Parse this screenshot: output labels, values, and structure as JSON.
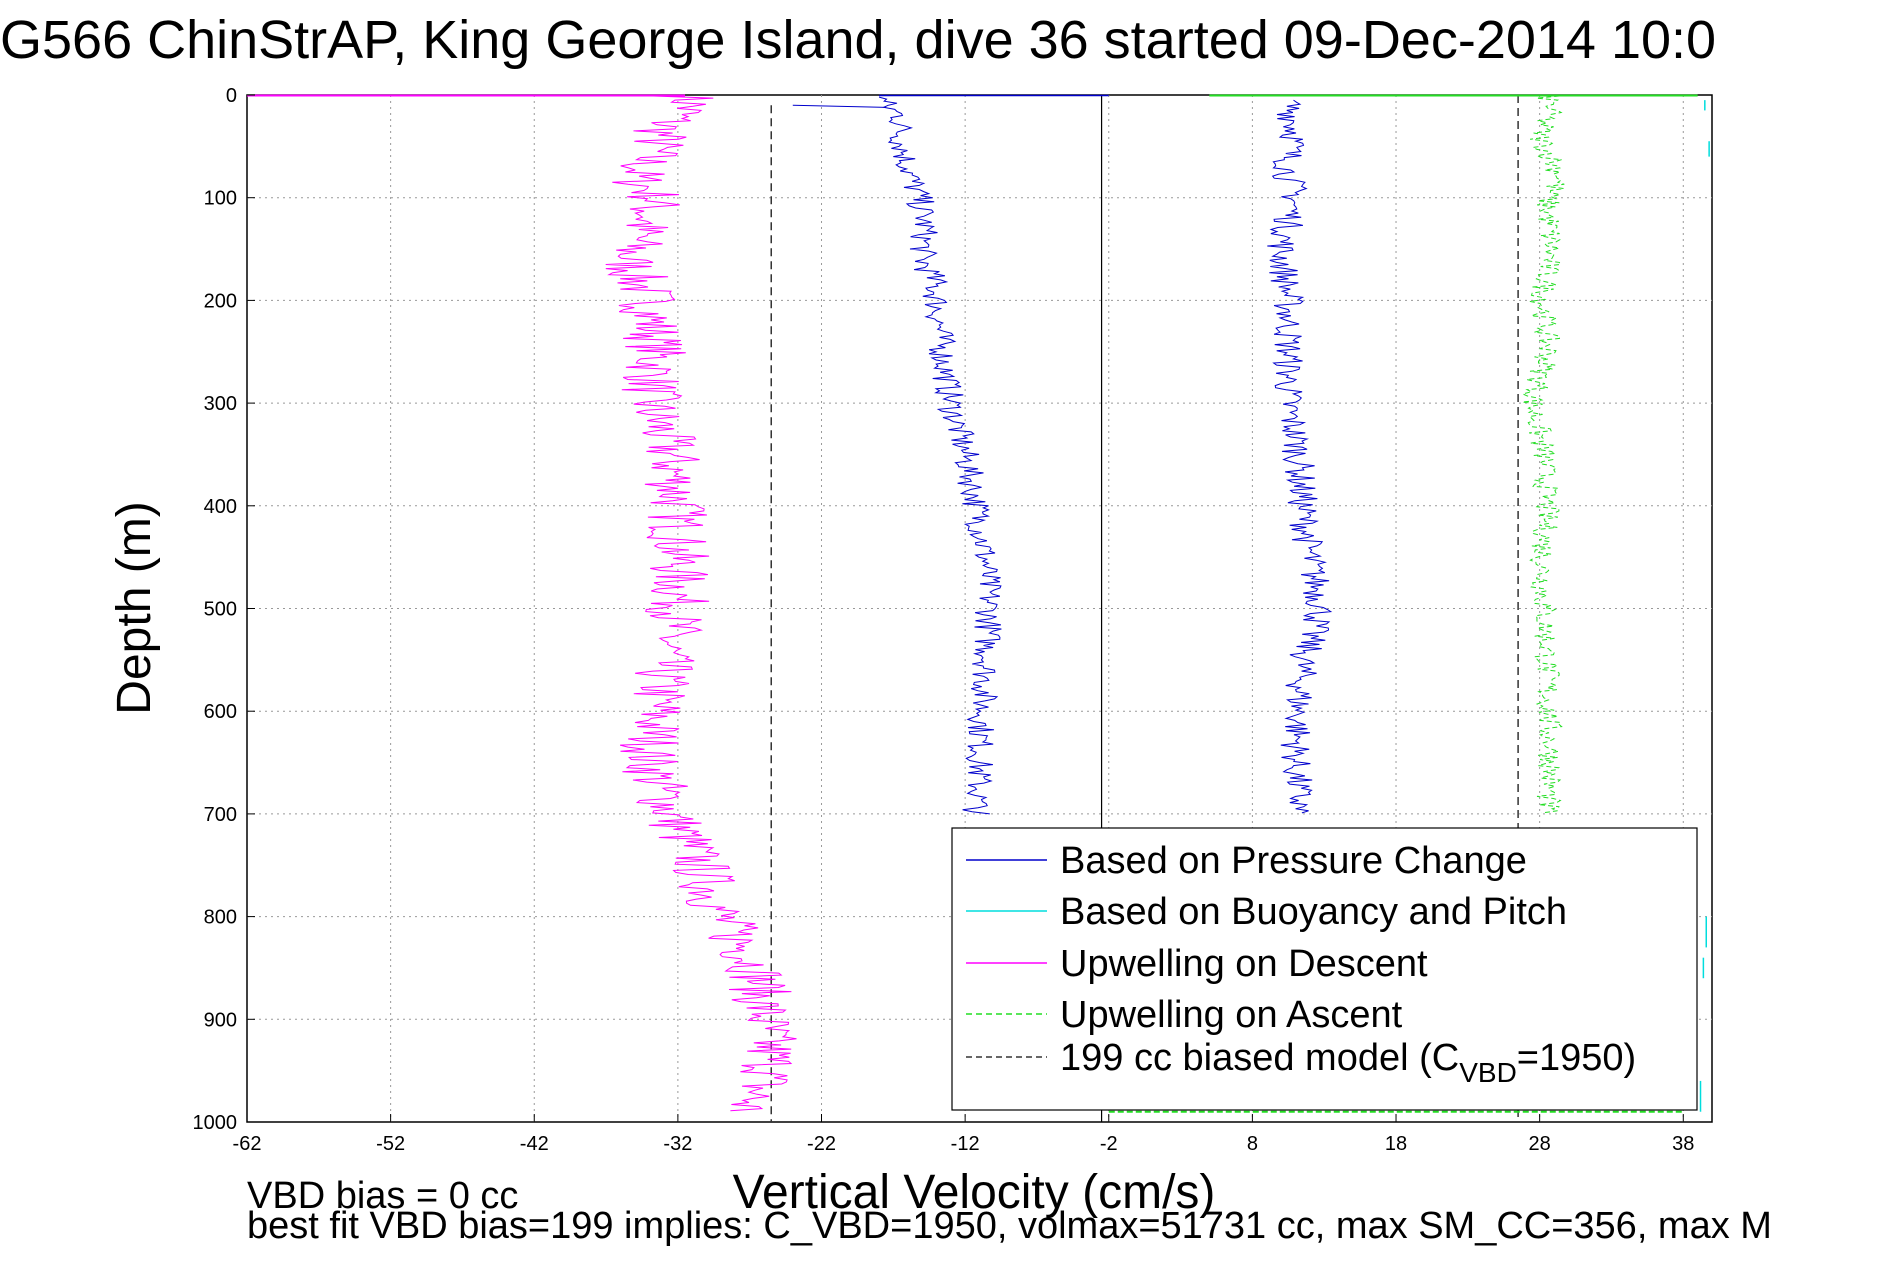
{
  "chart_data": {
    "type": "line",
    "title": "G566 ChinStrAP, King George Island, dive 36 started 09-Dec-2014 10:0",
    "xlabel": "Vertical Velocity (cm/s)",
    "ylabel": "Depth (m)",
    "xlim": [
      -62,
      40
    ],
    "ylim": [
      1000,
      0
    ],
    "y_reversed": true,
    "x_ticks": [
      -62,
      -52,
      -42,
      -32,
      -22,
      -12,
      -2,
      8,
      18,
      28,
      38
    ],
    "y_ticks": [
      0,
      100,
      200,
      300,
      400,
      500,
      600,
      700,
      800,
      900,
      1000
    ],
    "grid": true,
    "legend_position": "bottom-right",
    "notes": [
      "VBD bias = 0 cc",
      "best fit VBD bias=199 implies: C_VBD=1950, volmax=51731 cc, max SM_CC=356, max M"
    ],
    "reference_lines": [
      {
        "name": "descent-model-zero",
        "x": -2.5,
        "style": "solid",
        "color": "#000000"
      }
    ],
    "series": [
      {
        "name": "Based on Pressure Change",
        "color": "#0000cc",
        "style": "solid",
        "descent": {
          "depth": [
            2,
            5,
            10,
            20,
            40,
            60,
            80,
            100,
            130,
            160,
            180,
            200,
            250,
            300,
            350,
            400,
            450,
            500,
            550,
            600,
            650,
            700
          ],
          "velocity": [
            -17.5,
            -17.8,
            -17.5,
            -16.5,
            -16.5,
            -16.2,
            -15.8,
            -15.2,
            -14.8,
            -15.0,
            -14.2,
            -14.0,
            -13.6,
            -13.0,
            -12.0,
            -11.2,
            -10.6,
            -10.3,
            -10.5,
            -10.8,
            -11.0,
            -11.2
          ]
        },
        "ascent": {
          "depth": [
            5,
            20,
            40,
            60,
            80,
            100,
            150,
            200,
            250,
            300,
            350,
            400,
            450,
            500,
            550,
            600,
            650,
            700
          ],
          "velocity": [
            10.5,
            10.8,
            11.0,
            10.5,
            10.5,
            11.0,
            10.0,
            10.5,
            10.5,
            10.5,
            11.2,
            11.5,
            12.0,
            12.8,
            11.5,
            11.2,
            11.0,
            11.3
          ]
        }
      },
      {
        "name": "Based on Buoyancy and Pitch",
        "color": "#00dddd",
        "style": "solid",
        "segments": [
          {
            "depth": [
              5,
              15
            ],
            "velocity": [
              39.5,
              39.5
            ]
          },
          {
            "depth": [
              45,
              60
            ],
            "velocity": [
              39.8,
              39.8
            ]
          },
          {
            "depth": [
              800,
              830
            ],
            "velocity": [
              39.6,
              39.6
            ]
          },
          {
            "depth": [
              840,
              860
            ],
            "velocity": [
              39.4,
              39.4
            ]
          },
          {
            "depth": [
              960,
              990
            ],
            "velocity": [
              39.2,
              39.2
            ]
          }
        ]
      },
      {
        "name": "Upwelling on Descent",
        "color": "#ff00ff",
        "style": "solid",
        "depth": [
          1,
          10,
          30,
          50,
          80,
          100,
          130,
          160,
          200,
          250,
          300,
          350,
          400,
          450,
          500,
          550,
          600,
          650,
          700,
          750,
          800,
          850,
          900,
          950,
          990
        ],
        "velocity": [
          -31.5,
          -31.0,
          -33.0,
          -33.5,
          -35.0,
          -33.5,
          -34.5,
          -35.5,
          -34.0,
          -33.5,
          -34.0,
          -32.5,
          -32.0,
          -32.0,
          -32.0,
          -33.0,
          -33.5,
          -34.0,
          -32.5,
          -30.5,
          -29.0,
          -26.5,
          -26.0,
          -25.5,
          -27.5
        ]
      },
      {
        "name": "Upwelling on Ascent",
        "color": "#22dd22",
        "style": "dashed",
        "depth": [
          1,
          10,
          40,
          80,
          100,
          150,
          200,
          250,
          300,
          350,
          400,
          450,
          500,
          550,
          600,
          650,
          700
        ],
        "velocity": [
          28.5,
          28.8,
          28.0,
          29.5,
          28.5,
          28.8,
          28.2,
          28.6,
          27.5,
          28.3,
          28.5,
          28.2,
          28.3,
          28.5,
          28.6,
          28.8,
          28.5
        ]
      },
      {
        "name": "199 cc biased model (C_VBD=1950)",
        "legend_label": "199 cc biased model (C",
        "legend_sub": "VBD",
        "legend_suffix": "=1950)",
        "color": "#333333",
        "style": "dashed",
        "lines": [
          {
            "x": -25.5,
            "depth": [
              10,
              1000
            ]
          },
          {
            "x": 26.5,
            "depth": [
              0,
              1000
            ]
          }
        ]
      }
    ]
  }
}
